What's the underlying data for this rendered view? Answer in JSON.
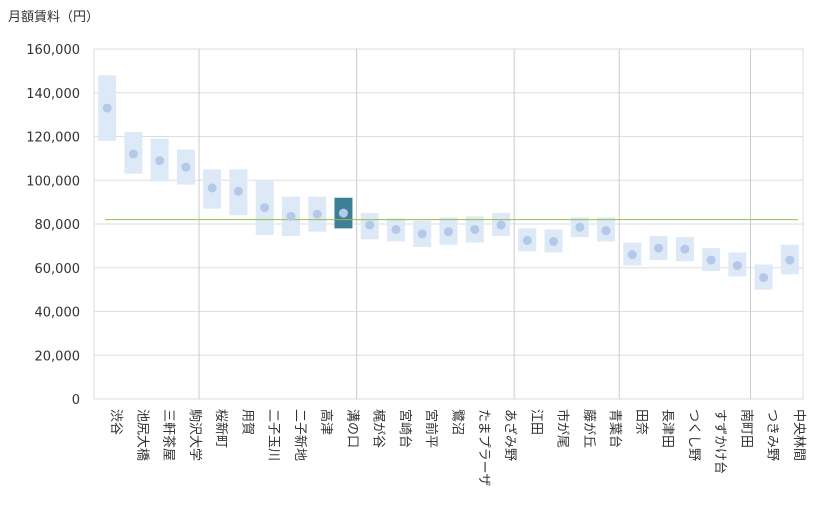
{
  "chart_data": {
    "type": "range-dot",
    "title": "",
    "ylabel": "月額賃料（円）",
    "xlabel": "",
    "ylim": [
      0,
      160000
    ],
    "ytick_step": 20000,
    "y_ticks": [
      "0",
      "20,000",
      "40,000",
      "60,000",
      "80,000",
      "100,000",
      "120,000",
      "140,000",
      "160,000"
    ],
    "reference_line": 82000,
    "highlight": "溝の口",
    "group_separators_after": [
      "駒沢大学",
      "溝の口",
      "あざみ野",
      "青葉台",
      "南町田"
    ],
    "categories": [
      "渋谷",
      "池尻大橋",
      "三軒茶屋",
      "駒沢大学",
      "桜新町",
      "用賀",
      "二子玉川",
      "二子新地",
      "高津",
      "溝の口",
      "梶が谷",
      "宮崎台",
      "宮前平",
      "鷺沼",
      "たまプラーザ",
      "あざみ野",
      "江田",
      "市が尾",
      "藤が丘",
      "青葉台",
      "田奈",
      "長津田",
      "つくし野",
      "すずかけ台",
      "南町田",
      "つきみ野",
      "中央林間"
    ],
    "values": [
      133000,
      112000,
      109000,
      106000,
      96500,
      95000,
      87500,
      83500,
      84500,
      85000,
      79500,
      77500,
      75500,
      76500,
      77500,
      79500,
      72500,
      72000,
      78500,
      77000,
      66000,
      69000,
      68500,
      63500,
      61000,
      55500,
      63500
    ],
    "low": [
      118000,
      103000,
      99500,
      98000,
      87000,
      84000,
      75000,
      74500,
      76500,
      78000,
      73000,
      72000,
      69500,
      70500,
      71500,
      74500,
      67500,
      67000,
      74000,
      72000,
      61000,
      63500,
      63000,
      58500,
      56000,
      50000,
      57000
    ],
    "high": [
      148000,
      122000,
      119000,
      114000,
      105000,
      105000,
      100000,
      92500,
      92500,
      92000,
      85000,
      82500,
      81500,
      83000,
      83500,
      85000,
      78000,
      77500,
      83000,
      83000,
      71500,
      74500,
      74000,
      69000,
      67000,
      61500,
      70500
    ],
    "colors": {
      "range": "#dde9f6",
      "dot": "#b4c8e8",
      "highlight_box": "#3d7f96",
      "highlight_dot": "#b4c8e8",
      "reference_line": "#8fbf4a",
      "grid": "#dedede",
      "separator": "#cccccc"
    }
  }
}
